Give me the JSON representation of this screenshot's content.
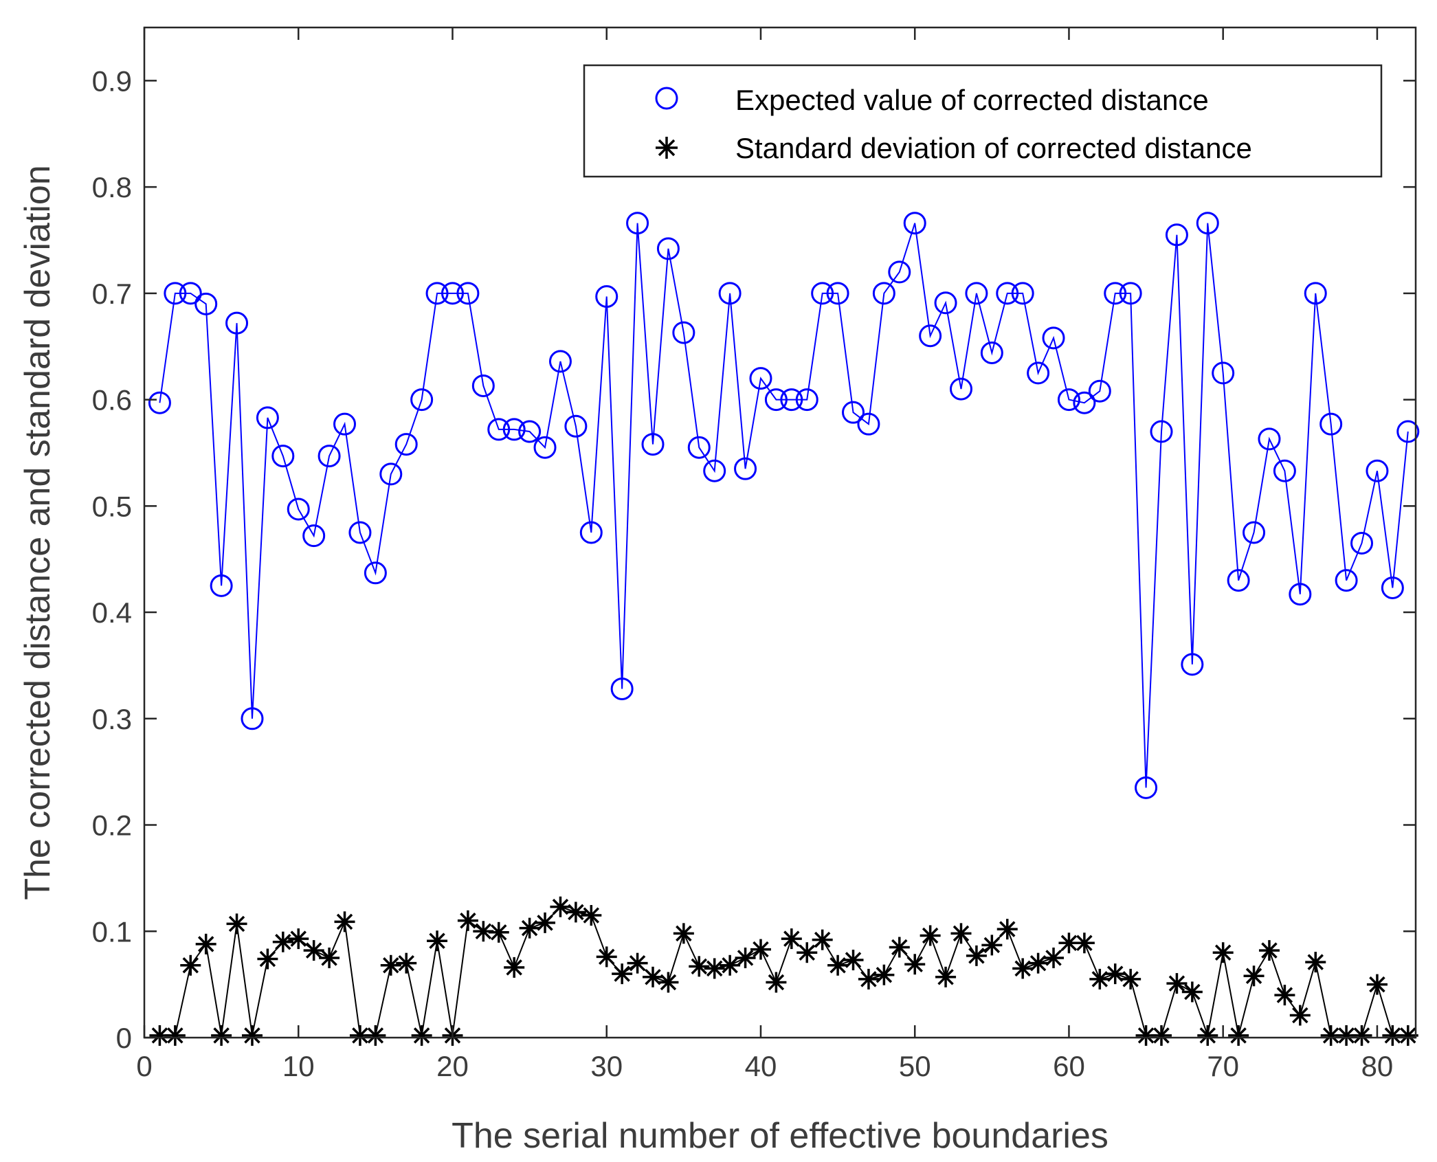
{
  "chart_data": {
    "type": "line",
    "title": "",
    "xlabel": "The serial number of effective boundaries",
    "ylabel": "The corrected distance and standard deviation",
    "xlim": [
      0,
      82.5
    ],
    "ylim": [
      0,
      0.95
    ],
    "xticks": [
      0,
      10,
      20,
      30,
      40,
      50,
      60,
      70,
      80
    ],
    "xtick_labels": [
      "0",
      "10",
      "20",
      "30",
      "40",
      "50",
      "60",
      "70",
      "80"
    ],
    "yticks": [
      0,
      0.1,
      0.2,
      0.3,
      0.4,
      0.5,
      0.6,
      0.7,
      0.8,
      0.9
    ],
    "ytick_labels": [
      "0",
      "0.1",
      "0.2",
      "0.3",
      "0.4",
      "0.5",
      "0.6",
      "0.7",
      "0.8",
      "0.9"
    ],
    "grid": false,
    "legend_position": "top-right",
    "x": [
      1,
      2,
      3,
      4,
      5,
      6,
      7,
      8,
      9,
      10,
      11,
      12,
      13,
      14,
      15,
      16,
      17,
      18,
      19,
      20,
      21,
      22,
      23,
      24,
      25,
      26,
      27,
      28,
      29,
      30,
      31,
      32,
      33,
      34,
      35,
      36,
      37,
      38,
      39,
      40,
      41,
      42,
      43,
      44,
      45,
      46,
      47,
      48,
      49,
      50,
      51,
      52,
      53,
      54,
      55,
      56,
      57,
      58,
      59,
      60,
      61,
      62,
      63,
      64,
      65,
      66,
      67,
      68,
      69,
      70,
      71,
      72,
      73,
      74,
      75,
      76,
      77,
      78,
      79,
      80,
      81,
      82
    ],
    "series": [
      {
        "name": "Expected value of corrected distance",
        "color": "#0000ff",
        "marker": "circle",
        "values": [
          0.597,
          0.7,
          0.7,
          0.69,
          0.425,
          0.672,
          0.3,
          0.583,
          0.547,
          0.497,
          0.472,
          0.547,
          0.577,
          0.475,
          0.437,
          0.53,
          0.558,
          0.6,
          0.7,
          0.7,
          0.7,
          0.613,
          0.572,
          0.572,
          0.57,
          0.555,
          0.636,
          0.575,
          0.475,
          0.697,
          0.328,
          0.766,
          0.558,
          0.742,
          0.663,
          0.555,
          0.533,
          0.7,
          0.535,
          0.62,
          0.6,
          0.6,
          0.6,
          0.7,
          0.7,
          0.588,
          0.577,
          0.7,
          0.72,
          0.766,
          0.66,
          0.691,
          0.61,
          0.7,
          0.644,
          0.7,
          0.7,
          0.625,
          0.658,
          0.6,
          0.597,
          0.608,
          0.7,
          0.7,
          0.235,
          0.57,
          0.755,
          0.351,
          0.766,
          0.625,
          0.43,
          0.475,
          0.563,
          0.533,
          0.417,
          0.7,
          0.577,
          0.43,
          0.465,
          0.533,
          0.423,
          0.57
        ]
      },
      {
        "name": "Standard deviation of corrected distance",
        "color": "#000000",
        "marker": "asterisk",
        "values": [
          0.002,
          0.002,
          0.068,
          0.088,
          0.002,
          0.107,
          0.002,
          0.074,
          0.09,
          0.093,
          0.082,
          0.075,
          0.109,
          0.002,
          0.002,
          0.068,
          0.07,
          0.002,
          0.091,
          0.002,
          0.11,
          0.1,
          0.099,
          0.066,
          0.103,
          0.108,
          0.123,
          0.118,
          0.115,
          0.076,
          0.06,
          0.07,
          0.057,
          0.052,
          0.098,
          0.067,
          0.065,
          0.068,
          0.075,
          0.083,
          0.052,
          0.093,
          0.08,
          0.092,
          0.068,
          0.073,
          0.055,
          0.059,
          0.085,
          0.069,
          0.096,
          0.057,
          0.098,
          0.077,
          0.087,
          0.102,
          0.065,
          0.07,
          0.075,
          0.089,
          0.089,
          0.055,
          0.06,
          0.055,
          0.002,
          0.002,
          0.051,
          0.043,
          0.002,
          0.08,
          0.002,
          0.058,
          0.082,
          0.04,
          0.021,
          0.071,
          0.002,
          0.002,
          0.002,
          0.05,
          0.002,
          0.002
        ]
      }
    ]
  }
}
